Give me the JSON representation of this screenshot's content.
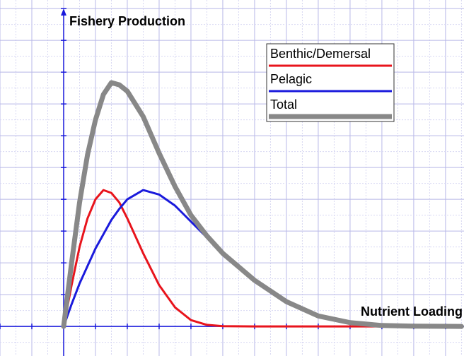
{
  "chart_data": {
    "type": "line",
    "ylabel": "Fishery Production",
    "xlabel": "Nutrient Loading",
    "x": [
      0,
      0.25,
      0.5,
      0.75,
      1,
      1.25,
      1.5,
      1.75,
      2,
      2.5,
      3,
      3.5,
      4,
      4.5,
      5,
      6,
      7,
      8,
      9,
      10,
      11,
      12.5
    ],
    "series": [
      {
        "name": "Benthic/Demersal",
        "color": "#e8141c",
        "width": 3,
        "values": [
          0,
          1.3,
          2.5,
          3.4,
          4.0,
          4.29,
          4.2,
          3.9,
          3.4,
          2.3,
          1.3,
          0.6,
          0.2,
          0.05,
          0.01,
          0,
          0,
          0,
          0,
          0,
          0,
          0
        ]
      },
      {
        "name": "Pelagic",
        "color": "#1a1adc",
        "width": 3,
        "values": [
          0,
          0.7,
          1.35,
          1.9,
          2.45,
          2.9,
          3.35,
          3.7,
          4.0,
          4.29,
          4.15,
          3.8,
          3.3,
          2.8,
          2.3,
          1.45,
          0.78,
          0.33,
          0.12,
          0.03,
          0.01,
          0
        ]
      },
      {
        "name": "Total",
        "color": "#888888",
        "width": 7,
        "values": [
          0,
          2.0,
          3.9,
          5.4,
          6.5,
          7.3,
          7.67,
          7.6,
          7.4,
          6.6,
          5.45,
          4.4,
          3.5,
          2.85,
          2.3,
          1.45,
          0.78,
          0.33,
          0.12,
          0.03,
          0.01,
          0
        ]
      }
    ],
    "xlim": [
      -2,
      12.58
    ],
    "ylim": [
      -0.93,
      10.27
    ],
    "xticks": [
      -2,
      -1.5,
      -1,
      -0.5,
      0,
      0.5,
      1,
      1.5,
      2,
      2.5,
      3,
      3.5,
      4,
      4.5,
      5,
      5.5,
      6,
      6.5,
      7,
      7.5,
      8,
      8.5,
      9,
      9.5,
      10,
      10.5,
      11,
      11.5,
      12,
      12.5
    ],
    "yticks": [
      -0.5,
      0,
      0.5,
      1,
      1.5,
      2,
      2.5,
      3,
      3.5,
      4,
      4.5,
      5,
      5.5,
      6,
      6.5,
      7,
      7.5,
      8,
      8.5,
      9,
      9.5,
      10
    ],
    "grid": true,
    "legend": "upper right"
  }
}
